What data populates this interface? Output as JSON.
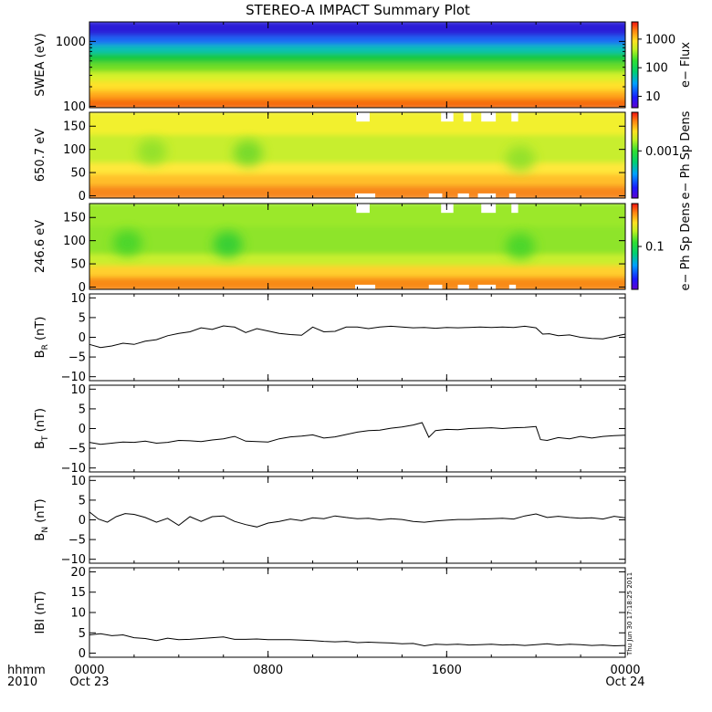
{
  "title": "STEREO-A IMPACT Summary Plot",
  "stamp": "Thu Jun 30 17:18:25 2011",
  "xaxis": {
    "corner_labels": [
      "hhmm",
      "2010"
    ],
    "ticks": [
      {
        "hours": 0,
        "time": "0000",
        "date": "Oct 23"
      },
      {
        "hours": 8,
        "time": "0800",
        "date": ""
      },
      {
        "hours": 16,
        "time": "1600",
        "date": ""
      },
      {
        "hours": 24,
        "time": "0000",
        "date": "Oct 24"
      }
    ],
    "range_hours": [
      0,
      24
    ]
  },
  "chart_data": [
    {
      "type": "heatmap",
      "id": "swea",
      "ylabel": "SWEA (eV)",
      "yscale": "log",
      "ylim": [
        95,
        2000
      ],
      "yticks": [
        {
          "v": 100,
          "label": "100"
        },
        {
          "v": 1000,
          "label": "1000"
        }
      ],
      "colorbar": {
        "label": "e− Flux",
        "scale": "log",
        "range": [
          4,
          4000
        ],
        "ticks": [
          {
            "v": 10,
            "label": "10"
          },
          {
            "v": 100,
            "label": "100"
          },
          {
            "v": 1000,
            "label": "1000"
          }
        ]
      },
      "bands": [
        {
          "y": [
            95,
            140
          ],
          "color": "#f56a0f"
        },
        {
          "y": [
            140,
            185
          ],
          "color": "#ffa91f"
        },
        {
          "y": [
            185,
            260
          ],
          "color": "#ffe12b"
        },
        {
          "y": [
            260,
            360
          ],
          "color": "#d7f22c"
        },
        {
          "y": [
            360,
            500
          ],
          "color": "#6fde25"
        },
        {
          "y": [
            500,
            700
          ],
          "color": "#16c93c"
        },
        {
          "y": [
            700,
            950
          ],
          "color": "#0fbfb8"
        },
        {
          "y": [
            950,
            1300
          ],
          "color": "#1f67f5"
        },
        {
          "y": [
            1300,
            2000
          ],
          "color": "#2a1ed8"
        }
      ]
    },
    {
      "type": "heatmap",
      "id": "pad_650",
      "ylabel": "650.7 eV",
      "ylim": [
        -5,
        180
      ],
      "yticks": [
        {
          "v": 0,
          "label": "0"
        },
        {
          "v": 50,
          "label": "50"
        },
        {
          "v": 100,
          "label": "100"
        },
        {
          "v": 150,
          "label": "150"
        }
      ],
      "colorbar": {
        "label": "e− Ph Sp Dens",
        "ticks": [
          {
            "frac": 0.55,
            "label": "0.001"
          }
        ]
      },
      "bands": [
        {
          "y": [
            -5,
            25
          ],
          "color": "#f7871b"
        },
        {
          "y": [
            25,
            50
          ],
          "color": "#ffbf2b"
        },
        {
          "y": [
            50,
            75
          ],
          "color": "#ffe83a"
        },
        {
          "y": [
            75,
            135
          ],
          "color": "#c8ee2e"
        },
        {
          "y": [
            135,
            180
          ],
          "color": "#f2f02e"
        }
      ],
      "blobs": [
        {
          "hours": 2.8,
          "y": 95,
          "color": "#8fe02a"
        },
        {
          "hours": 7.1,
          "y": 92,
          "color": "#6fd82a"
        },
        {
          "hours": 19.3,
          "y": 80,
          "color": "#8fe02a"
        }
      ],
      "gaps": [
        {
          "hours": [
            11.95,
            12.55
          ],
          "y": [
            160,
            180
          ]
        },
        {
          "hours": [
            15.75,
            16.3
          ],
          "y": [
            160,
            180
          ]
        },
        {
          "hours": [
            16.75,
            17.1
          ],
          "y": [
            160,
            180
          ]
        },
        {
          "hours": [
            17.55,
            18.2
          ],
          "y": [
            160,
            180
          ]
        },
        {
          "hours": [
            18.9,
            19.2
          ],
          "y": [
            160,
            180
          ]
        },
        {
          "hours": [
            11.9,
            12.8
          ],
          "y": [
            -5,
            5
          ]
        },
        {
          "hours": [
            15.2,
            15.8
          ],
          "y": [
            -5,
            5
          ]
        },
        {
          "hours": [
            16.5,
            17.0
          ],
          "y": [
            -5,
            5
          ]
        },
        {
          "hours": [
            17.4,
            18.2
          ],
          "y": [
            -5,
            5
          ]
        },
        {
          "hours": [
            18.8,
            19.1
          ],
          "y": [
            -5,
            5
          ]
        }
      ]
    },
    {
      "type": "heatmap",
      "id": "pad_246",
      "ylabel": "246.6 eV",
      "ylim": [
        -5,
        180
      ],
      "yticks": [
        {
          "v": 0,
          "label": "0"
        },
        {
          "v": 50,
          "label": "50"
        },
        {
          "v": 100,
          "label": "100"
        },
        {
          "v": 150,
          "label": "150"
        }
      ],
      "colorbar": {
        "label": "e− Ph Sp Dens",
        "ticks": [
          {
            "frac": 0.5,
            "label": "0.1"
          }
        ]
      },
      "bands": [
        {
          "y": [
            -5,
            25
          ],
          "color": "#f88a19"
        },
        {
          "y": [
            25,
            50
          ],
          "color": "#ffd02e"
        },
        {
          "y": [
            50,
            75
          ],
          "color": "#c9ee2e"
        },
        {
          "y": [
            75,
            135
          ],
          "color": "#8ee42a"
        },
        {
          "y": [
            135,
            180
          ],
          "color": "#9be82c"
        }
      ],
      "blobs": [
        {
          "hours": 1.7,
          "y": 95,
          "color": "#45d42c"
        },
        {
          "hours": 6.2,
          "y": 92,
          "color": "#2fcd34"
        },
        {
          "hours": 19.3,
          "y": 88,
          "color": "#45d42c"
        }
      ],
      "gaps": [
        {
          "hours": [
            11.95,
            12.55
          ],
          "y": [
            160,
            180
          ]
        },
        {
          "hours": [
            15.75,
            16.3
          ],
          "y": [
            160,
            180
          ]
        },
        {
          "hours": [
            17.55,
            18.2
          ],
          "y": [
            160,
            180
          ]
        },
        {
          "hours": [
            18.9,
            19.2
          ],
          "y": [
            160,
            180
          ]
        },
        {
          "hours": [
            11.9,
            12.8
          ],
          "y": [
            -5,
            5
          ]
        },
        {
          "hours": [
            15.2,
            15.8
          ],
          "y": [
            -5,
            5
          ]
        },
        {
          "hours": [
            16.5,
            17.0
          ],
          "y": [
            -5,
            5
          ]
        },
        {
          "hours": [
            17.4,
            18.2
          ],
          "y": [
            -5,
            5
          ]
        },
        {
          "hours": [
            18.8,
            19.1
          ],
          "y": [
            -5,
            5
          ]
        }
      ]
    },
    {
      "type": "line",
      "id": "br",
      "ylabel": {
        "base": "B",
        "sub": "R",
        "unit": " (nT)"
      },
      "ylim": [
        -11,
        11
      ],
      "yticks": [
        {
          "v": -10,
          "label": "−10"
        },
        {
          "v": -5,
          "label": "−5"
        },
        {
          "v": 0,
          "label": "0"
        },
        {
          "v": 5,
          "label": "5"
        },
        {
          "v": 10,
          "label": "10"
        }
      ],
      "x": [
        0,
        0.5,
        1,
        1.5,
        2,
        2.5,
        3,
        3.5,
        4,
        4.5,
        5,
        5.5,
        6,
        6.5,
        7,
        7.5,
        8,
        8.5,
        9,
        9.5,
        10,
        10.5,
        11,
        11.5,
        12,
        12.5,
        13,
        13.5,
        14,
        14.5,
        15,
        15.5,
        16,
        16.5,
        17,
        17.5,
        18,
        18.5,
        19,
        19.5,
        20,
        20.3,
        20.6,
        21,
        21.5,
        22,
        22.5,
        23,
        23.5,
        24
      ],
      "y": [
        -1.8,
        -2.6,
        -2.2,
        -1.5,
        -1.8,
        -1.0,
        -0.6,
        0.4,
        1.0,
        1.4,
        2.4,
        2.0,
        2.9,
        2.6,
        1.2,
        2.2,
        1.6,
        1.0,
        0.7,
        0.5,
        2.6,
        1.4,
        1.5,
        2.6,
        2.6,
        2.2,
        2.6,
        2.8,
        2.6,
        2.4,
        2.5,
        2.3,
        2.5,
        2.4,
        2.5,
        2.6,
        2.5,
        2.6,
        2.5,
        2.8,
        2.4,
        0.8,
        0.9,
        0.4,
        0.6,
        0.0,
        -0.3,
        -0.4,
        0.2,
        0.8
      ]
    },
    {
      "type": "line",
      "id": "bt",
      "ylabel": {
        "base": "B",
        "sub": "T",
        "unit": " (nT)"
      },
      "ylim": [
        -11,
        11
      ],
      "yticks": [
        {
          "v": -10,
          "label": "−10"
        },
        {
          "v": -5,
          "label": "−5"
        },
        {
          "v": 0,
          "label": "0"
        },
        {
          "v": 5,
          "label": "5"
        },
        {
          "v": 10,
          "label": "10"
        }
      ],
      "x": [
        0,
        0.5,
        1,
        1.5,
        2,
        2.5,
        3,
        3.5,
        4,
        4.5,
        5,
        5.5,
        6,
        6.5,
        7,
        7.5,
        8,
        8.5,
        9,
        9.5,
        10,
        10.5,
        11,
        11.5,
        12,
        12.5,
        13,
        13.5,
        14,
        14.5,
        14.9,
        15.2,
        15.5,
        16,
        16.5,
        17,
        17.5,
        18,
        18.5,
        19,
        19.5,
        20,
        20.2,
        20.5,
        21,
        21.5,
        22,
        22.5,
        23,
        23.5,
        24
      ],
      "y": [
        -3.5,
        -4.0,
        -3.7,
        -3.4,
        -3.5,
        -3.2,
        -3.7,
        -3.5,
        -3.0,
        -3.1,
        -3.3,
        -2.9,
        -2.6,
        -2.0,
        -3.2,
        -3.3,
        -3.4,
        -2.6,
        -2.1,
        -1.9,
        -1.6,
        -2.4,
        -2.1,
        -1.5,
        -0.9,
        -0.5,
        -0.4,
        0.1,
        0.4,
        0.9,
        1.5,
        -2.2,
        -0.5,
        -0.2,
        -0.3,
        0.0,
        0.1,
        0.2,
        0.0,
        0.2,
        0.3,
        0.5,
        -2.8,
        -3.0,
        -2.3,
        -2.6,
        -2.0,
        -2.4,
        -2.0,
        -1.8,
        -1.7
      ]
    },
    {
      "type": "line",
      "id": "bn",
      "ylabel": {
        "base": "B",
        "sub": "N",
        "unit": " (nT)"
      },
      "ylim": [
        -11,
        11
      ],
      "yticks": [
        {
          "v": -10,
          "label": "−10"
        },
        {
          "v": -5,
          "label": "−5"
        },
        {
          "v": 0,
          "label": "0"
        },
        {
          "v": 5,
          "label": "5"
        },
        {
          "v": 10,
          "label": "10"
        }
      ],
      "x": [
        0,
        0.4,
        0.8,
        1.2,
        1.6,
        2,
        2.5,
        3,
        3.5,
        4,
        4.5,
        5,
        5.5,
        6,
        6.5,
        7,
        7.5,
        8,
        8.5,
        9,
        9.5,
        10,
        10.5,
        11,
        11.5,
        12,
        12.5,
        13,
        13.5,
        14,
        14.5,
        15,
        15.5,
        16,
        16.5,
        17,
        17.5,
        18,
        18.5,
        19,
        19.5,
        20,
        20.5,
        21,
        21.5,
        22,
        22.5,
        23,
        23.5,
        24
      ],
      "y": [
        2.0,
        0.2,
        -0.6,
        0.8,
        1.6,
        1.4,
        0.6,
        -0.6,
        0.4,
        -1.4,
        0.8,
        -0.4,
        0.8,
        1.0,
        -0.4,
        -1.2,
        -1.8,
        -0.8,
        -0.4,
        0.2,
        -0.2,
        0.5,
        0.3,
        1.0,
        0.6,
        0.3,
        0.4,
        0.0,
        0.3,
        0.1,
        -0.4,
        -0.6,
        -0.3,
        -0.1,
        0.1,
        0.1,
        0.2,
        0.3,
        0.4,
        0.2,
        1.0,
        1.5,
        0.6,
        0.9,
        0.6,
        0.4,
        0.5,
        0.2,
        0.9,
        0.5
      ]
    },
    {
      "type": "line",
      "id": "bmag",
      "ylabel": {
        "base": "IBI",
        "sub": "",
        "unit": " (nT)"
      },
      "ylim": [
        -1,
        21
      ],
      "yticks": [
        {
          "v": 0,
          "label": "0"
        },
        {
          "v": 5,
          "label": "5"
        },
        {
          "v": 10,
          "label": "10"
        },
        {
          "v": 15,
          "label": "15"
        },
        {
          "v": 20,
          "label": "20"
        }
      ],
      "x": [
        0,
        0.5,
        1,
        1.5,
        2,
        2.5,
        3,
        3.5,
        4,
        4.5,
        5,
        5.5,
        6,
        6.5,
        7,
        7.5,
        8,
        8.5,
        9,
        9.5,
        10,
        10.5,
        11,
        11.5,
        12,
        12.5,
        13,
        13.5,
        14,
        14.5,
        15,
        15.5,
        16,
        16.5,
        17,
        17.5,
        18,
        18.5,
        19,
        19.5,
        20,
        20.5,
        21,
        21.5,
        22,
        22.5,
        23,
        23.5,
        24
      ],
      "y": [
        4.5,
        4.8,
        4.3,
        4.5,
        3.8,
        3.6,
        3.1,
        3.7,
        3.3,
        3.4,
        3.6,
        3.8,
        4.0,
        3.4,
        3.4,
        3.5,
        3.3,
        3.3,
        3.3,
        3.2,
        3.1,
        2.9,
        2.8,
        2.9,
        2.6,
        2.7,
        2.6,
        2.5,
        2.3,
        2.4,
        1.8,
        2.2,
        2.1,
        2.2,
        2.0,
        2.1,
        2.2,
        2.0,
        2.1,
        1.9,
        2.1,
        2.3,
        2.0,
        2.2,
        2.1,
        1.9,
        2.0,
        1.8,
        1.9
      ]
    }
  ]
}
